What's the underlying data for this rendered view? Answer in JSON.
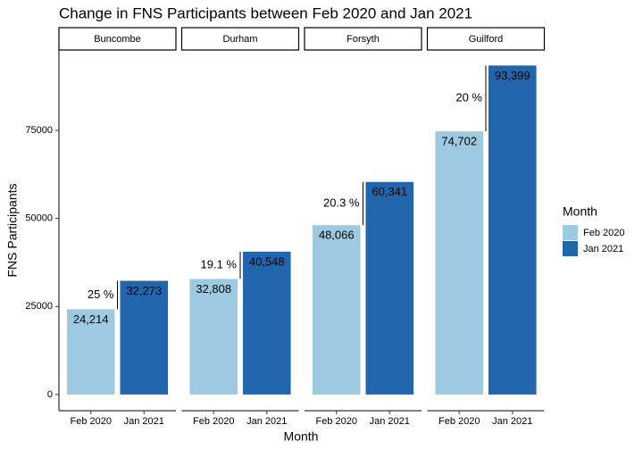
{
  "chart_data": {
    "type": "bar",
    "title": "Change in FNS Participants between Feb 2020 and Jan 2021",
    "x_label": "Month",
    "y_label": "FNS Participants",
    "legend_title": "Month",
    "facets": [
      "Buncombe",
      "Durham",
      "Forsyth",
      "Guilford"
    ],
    "series": [
      {
        "name": "Feb 2020",
        "color": "#9ecae1",
        "values": [
          24214,
          32808,
          48066,
          74702
        ],
        "value_labels": [
          "24,214",
          "32,808",
          "48,066",
          "74,702"
        ]
      },
      {
        "name": "Jan 2021",
        "color": "#2166ac",
        "values": [
          32273,
          40548,
          60341,
          93399
        ],
        "value_labels": [
          "32,273",
          "40,548",
          "60,341",
          "93,399"
        ]
      }
    ],
    "annotations": [
      "25 %",
      "19.1 %",
      "20.3 %",
      "20 %"
    ],
    "ylim": [
      -4600,
      97800
    ],
    "yticks": [
      0,
      25000,
      50000,
      75000
    ],
    "legend_position": "right"
  }
}
